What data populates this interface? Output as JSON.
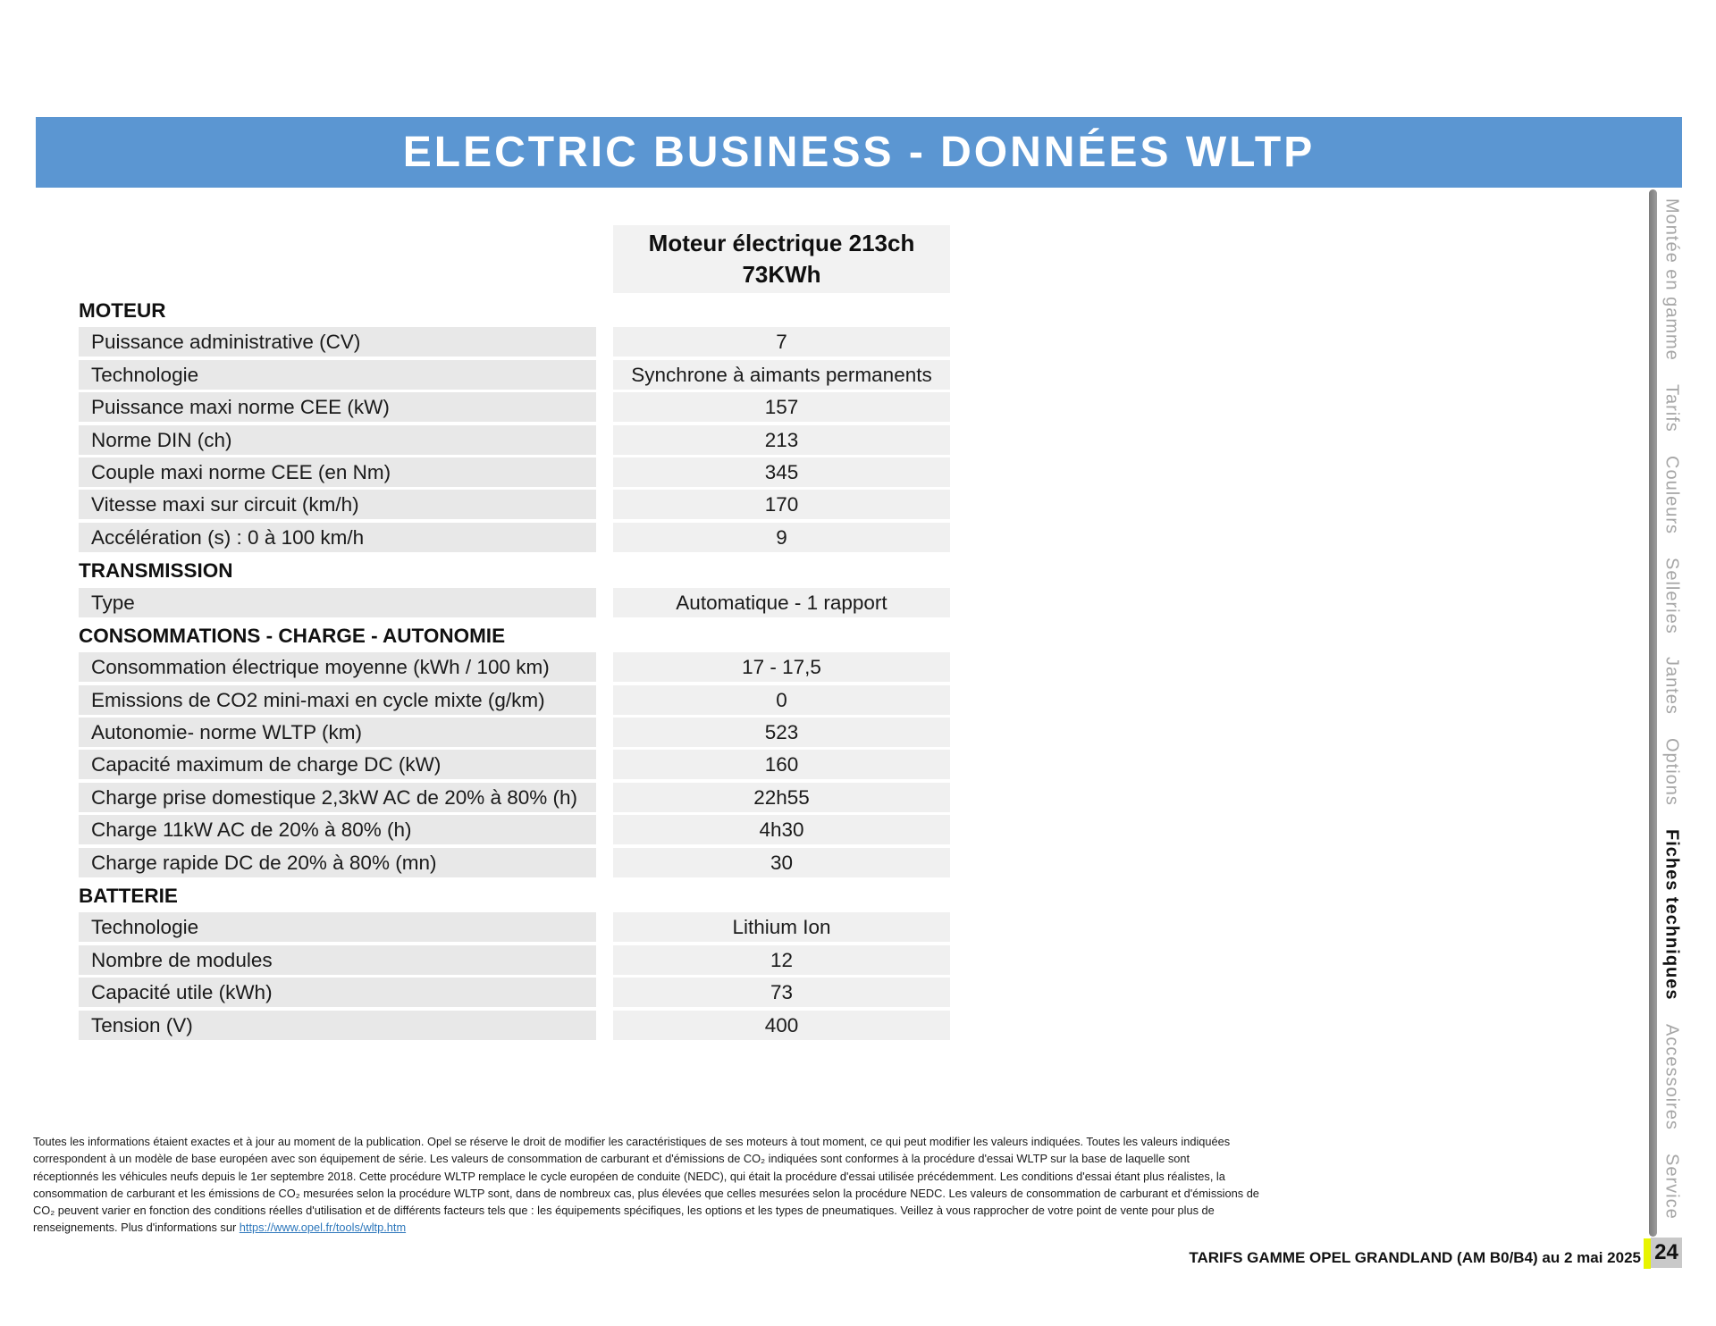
{
  "header": {
    "title": "ELECTRIC BUSINESS - DONNÉES WLTP",
    "banner_color": "#5b96d2"
  },
  "table": {
    "column_header": {
      "line1": "Moteur électrique 213ch",
      "line2": "73KWh"
    },
    "sections": [
      {
        "title": "MOTEUR",
        "rows": [
          {
            "label": "Puissance administrative (CV)",
            "value": "7"
          },
          {
            "label": "Technologie",
            "value": "Synchrone à aimants permanents"
          },
          {
            "label": "Puissance maxi norme CEE (kW)",
            "value": "157"
          },
          {
            "label": "Norme DIN (ch)",
            "value": "213"
          },
          {
            "label": "Couple maxi norme CEE (en Nm)",
            "value": "345"
          },
          {
            "label": "Vitesse maxi sur circuit (km/h)",
            "value": "170"
          },
          {
            "label": "Accélération (s) : 0 à 100 km/h",
            "value": "9"
          }
        ]
      },
      {
        "title": "TRANSMISSION",
        "rows": [
          {
            "label": "Type",
            "value": "Automatique - 1 rapport"
          }
        ]
      },
      {
        "title": "CONSOMMATIONS - CHARGE - AUTONOMIE",
        "rows": [
          {
            "label": "Consommation électrique moyenne (kWh / 100 km)",
            "value": "17 - 17,5"
          },
          {
            "label": "Emissions de CO2 mini-maxi en cycle mixte (g/km)",
            "value": "0"
          },
          {
            "label": "Autonomie- norme WLTP (km)",
            "value": "523"
          },
          {
            "label": "Capacité maximum de charge DC (kW)",
            "value": "160"
          },
          {
            "label": "Charge prise domestique 2,3kW AC de 20% à 80% (h)",
            "value": "22h55"
          },
          {
            "label": "Charge 11kW AC de 20% à 80% (h)",
            "value": "4h30"
          },
          {
            "label": "Charge rapide DC de 20% à 80% (mn)",
            "value": "30"
          }
        ]
      },
      {
        "title": "BATTERIE",
        "rows": [
          {
            "label": "Technologie",
            "value": "Lithium Ion"
          },
          {
            "label": "Nombre de modules",
            "value": "12"
          },
          {
            "label": "Capacité utile (kWh)",
            "value": "73"
          },
          {
            "label": "Tension (V)",
            "value": "400"
          }
        ]
      }
    ]
  },
  "footnote": {
    "lines": [
      "Toutes les informations étaient exactes et à jour au moment de la publication. Opel se réserve le droit de modifier les caractéristiques de ses moteurs à tout moment, ce qui peut modifier les valeurs indiquées. Toutes les valeurs indiquées",
      "correspondent à un modèle de base européen avec son équipement de série.  Les valeurs de consommation de carburant et d'émissions de CO₂ indiquées sont conformes à la procédure d'essai WLTP sur la base de laquelle sont",
      "réceptionnés les véhicules neufs depuis le 1er septembre 2018. Cette procédure WLTP remplace le cycle européen de conduite (NEDC), qui était la procédure d'essai utilisée précédemment. Les conditions d'essai étant plus réalistes, la",
      "consommation de carburant et les émissions de CO₂ mesurées selon la procédure WLTP sont, dans de nombreux cas, plus élevées que celles mesurées selon la procédure NEDC. Les valeurs de consommation de carburant et d'émissions de",
      "CO₂ peuvent varier en fonction des conditions réelles d'utilisation et de différents facteurs tels que : les équipements spécifiques, les options et les types de pneumatiques. Veillez à vous rapprocher de votre point de vente pour plus de"
    ],
    "last_line_prefix": "renseignements. Plus d'informations sur ",
    "link_text": "https://www.opel.fr/tools/wltp.htm",
    "link_color": "#2d77bb"
  },
  "sidebar": {
    "tabs": [
      {
        "label": "Montée en gamme",
        "active": false
      },
      {
        "label": "Tarifs",
        "active": false
      },
      {
        "label": "Couleurs",
        "active": false
      },
      {
        "label": "Selleries",
        "active": false
      },
      {
        "label": "Jantes",
        "active": false
      },
      {
        "label": "Options",
        "active": false
      },
      {
        "label": "Fiches techniques",
        "active": true
      },
      {
        "label": "Accessoires",
        "active": false
      },
      {
        "label": "Service",
        "active": false
      }
    ],
    "page_number": "24",
    "accent_yellow": "#e8f400"
  },
  "footer": {
    "doc_line": "TARIFS GAMME OPEL GRANDLAND (AM B0/B4) au 2 mai 2025"
  }
}
